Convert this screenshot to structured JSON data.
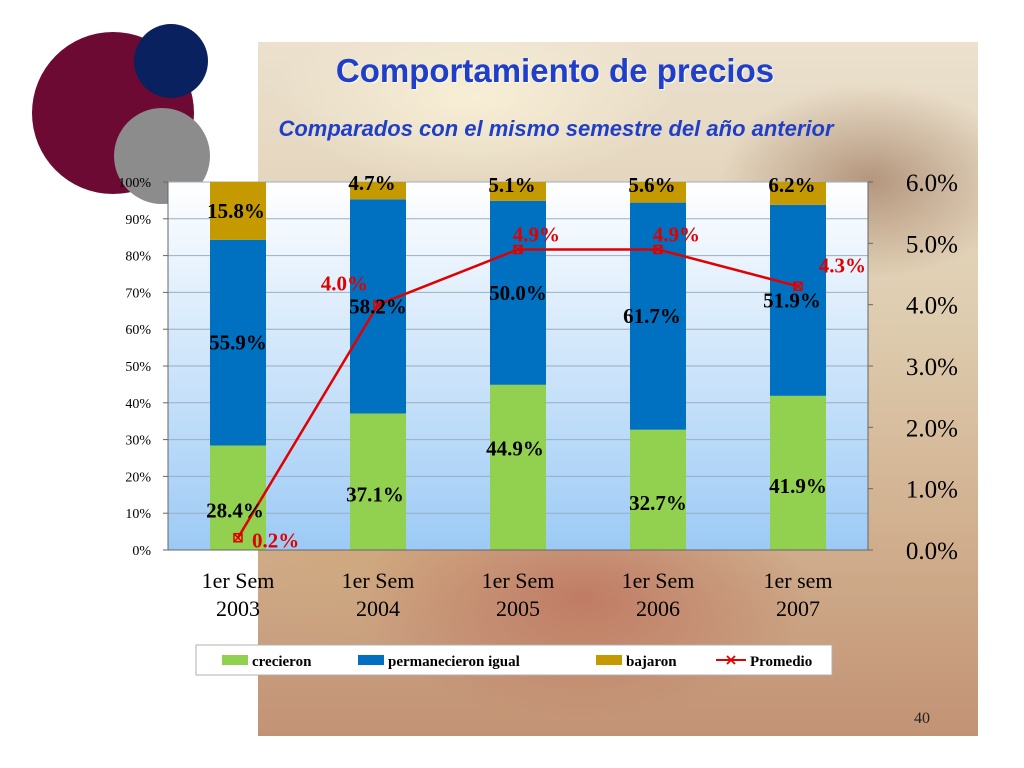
{
  "slide": {
    "title": "Comportamiento de precios",
    "subtitle": "Comparados con el mismo semestre del año anterior",
    "page_number": "40"
  },
  "colors": {
    "crecieron": "#92d050",
    "permanecieron": "#0070c0",
    "bajaron": "#c49a00",
    "promedio": "#e00000",
    "title": "#1f3fc8"
  },
  "chart_data": {
    "type": "bar",
    "stacked": true,
    "categories": [
      [
        "1er Sem",
        "2003"
      ],
      [
        "1er Sem",
        "2004"
      ],
      [
        "1er Sem",
        "2005"
      ],
      [
        "1er Sem",
        "2006"
      ],
      [
        "1er sem",
        "2007"
      ]
    ],
    "series": [
      {
        "name": "crecieron",
        "values": [
          28.4,
          37.1,
          44.9,
          32.7,
          41.9
        ],
        "labels": [
          "28.4%",
          "37.1%",
          "44.9%",
          "32.7%",
          "41.9%"
        ]
      },
      {
        "name": "permanecieron igual",
        "values": [
          55.9,
          58.2,
          50.0,
          61.7,
          51.9
        ],
        "labels": [
          "55.9%",
          "58.2%",
          "50.0%",
          "61.7%",
          "51.9%"
        ]
      },
      {
        "name": "bajaron",
        "values": [
          15.8,
          4.7,
          5.1,
          5.6,
          6.2
        ],
        "labels": [
          "15.8%",
          "4.7%",
          "5.1%",
          "5.6%",
          "6.2%"
        ]
      }
    ],
    "line_series": {
      "name": "Promedio",
      "axis": "right",
      "values": [
        0.2,
        4.0,
        4.9,
        4.9,
        4.3
      ],
      "labels": [
        "0.2%",
        "4.0%",
        "4.9%",
        "4.9%",
        "4.3%"
      ]
    },
    "ylim": [
      0,
      100
    ],
    "yticks": [
      "0%",
      "10%",
      "20%",
      "30%",
      "40%",
      "50%",
      "60%",
      "70%",
      "80%",
      "90%",
      "100%"
    ],
    "y2lim": [
      0,
      6
    ],
    "y2ticks": [
      "0.0%",
      "1.0%",
      "2.0%",
      "3.0%",
      "4.0%",
      "5.0%",
      "6.0%"
    ],
    "legend_position": "bottom",
    "legend": [
      "crecieron",
      "permanecieron igual",
      "bajaron",
      "Promedio"
    ]
  }
}
